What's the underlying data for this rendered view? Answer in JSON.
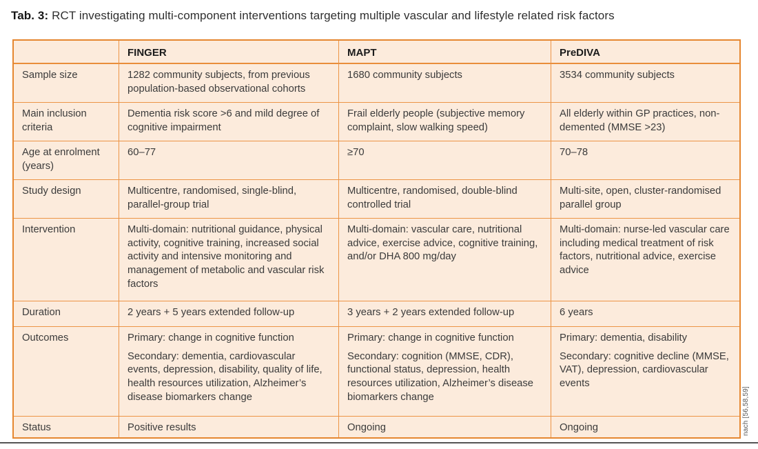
{
  "page": {
    "title_prefix": "Tab. 3:",
    "title_text": "RCT investigating multi-component interventions targeting multiple vascular and lifestyle related risk factors",
    "source_note": "nach [56,58,59]"
  },
  "table": {
    "columns": [
      "FINGER",
      "MAPT",
      "PreDIVA"
    ],
    "rows": [
      {
        "label": "Sample size",
        "cells": [
          "1282 community subjects, from previous population-based observational cohorts",
          "1680 community subjects",
          "3534 community subjects"
        ]
      },
      {
        "label": "Main inclusion criteria",
        "cells": [
          "Dementia risk score >6 and mild degree of cognitive impairment",
          "Frail elderly people (subjective memory complaint, slow walking speed)",
          "All elderly within GP practices, non-demented (MMSE >23)"
        ]
      },
      {
        "label": "Age at enrolment (years)",
        "cells": [
          "60–77",
          "≥70",
          "70–78"
        ]
      },
      {
        "label": "Study design",
        "cells": [
          "Multicentre, randomised, single-blind, parallel-group trial",
          "Multicentre, randomised, double-blind controlled trial",
          "Multi-site, open, cluster-randomised parallel group"
        ]
      },
      {
        "label": "Intervention",
        "cells": [
          "Multi-domain: nutritional guidance, physical activity, cognitive training, increased social activity and intensive monitoring and management of metabolic and vascular risk factors",
          "Multi-domain: vascular care, nutritional advice, exercise advice, cognitive training, and/or DHA 800 mg/day",
          "Multi-domain: nurse-led vascular care including medical treatment of risk factors, nutritional advice, exercise advice"
        ]
      },
      {
        "label": "Duration",
        "cells": [
          "2 years + 5 years extended follow-up",
          "3 years + 2 years extended follow-up",
          "6 years"
        ]
      },
      {
        "label": "Outcomes",
        "cells": [
          [
            "Primary: change in cognitive function",
            "Secondary: dementia, cardiovascular events, depression, disability, quality of life, health resources utilization, Alzheimer’s disease biomarkers change"
          ],
          [
            "Primary: change in cognitive function",
            "Secondary: cognition (MMSE, CDR), functional status, depression, health resources utilization, Alzheimer’s disease biomarkers change"
          ],
          [
            "Primary: dementia, disability",
            "Secondary: cognitive decline (MMSE, VAT), depression, cardiovascular events"
          ]
        ]
      },
      {
        "label": "Status",
        "cells": [
          "Positive results",
          "Ongoing",
          "Ongoing"
        ]
      }
    ]
  },
  "colors": {
    "table_background": "#fcebdc",
    "border_orange": "#e5862f",
    "grid_orange": "#ec9445",
    "text": "#3b3b3b"
  }
}
